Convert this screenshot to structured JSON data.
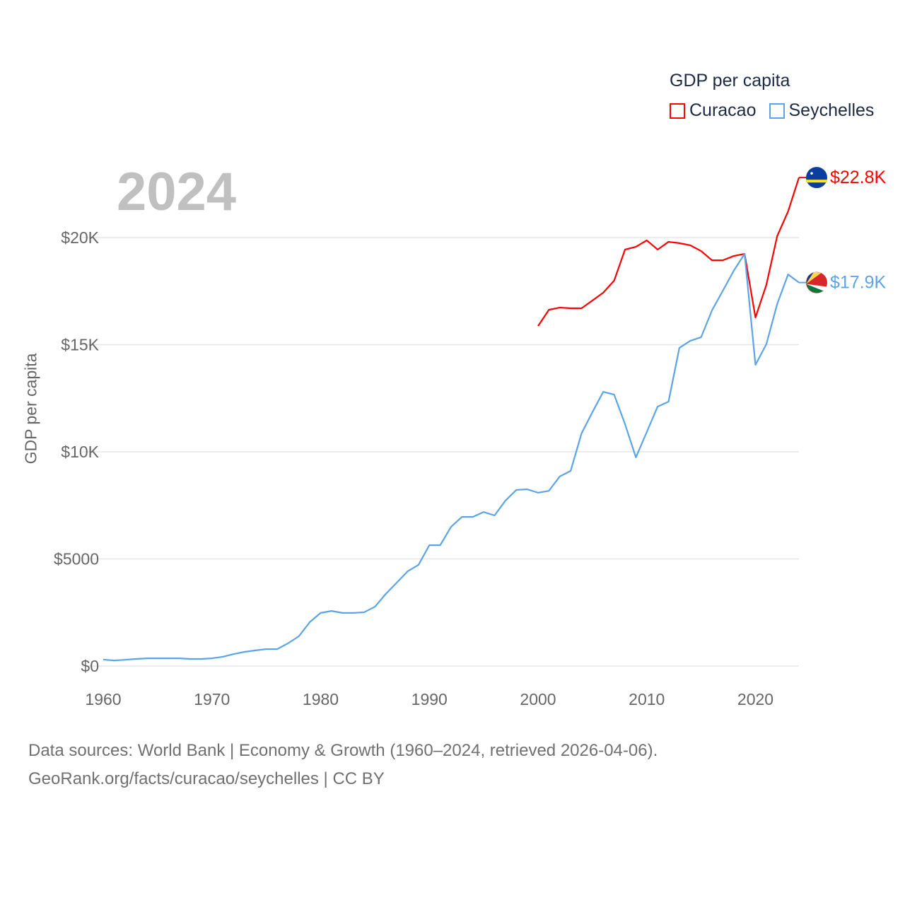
{
  "chart_data": {
    "type": "line",
    "year_label": "2024",
    "ylabel": "GDP per capita",
    "legend_title": "GDP per capita",
    "legend_placement": "top-right",
    "xlim": [
      1960,
      2024
    ],
    "ylim": [
      0,
      22800
    ],
    "x_ticks": [
      1960,
      1970,
      1980,
      1990,
      2000,
      2010,
      2020
    ],
    "x_tick_labels": [
      "1960",
      "1970",
      "1980",
      "1990",
      "2000",
      "2010",
      "2020"
    ],
    "y_ticks": [
      0,
      5000,
      10000,
      15000,
      20000
    ],
    "y_tick_labels": [
      "$0",
      "$5000",
      "$10K",
      "$15K",
      "$20K"
    ],
    "grid": true,
    "series": [
      {
        "name": "Curacao",
        "color": "#ff0000",
        "end_label": "$22.8K",
        "flag_icon": "curacao-flag",
        "x": [
          2000,
          2001,
          2002,
          2003,
          2004,
          2005,
          2006,
          2007,
          2008,
          2009,
          2010,
          2011,
          2012,
          2013,
          2014,
          2015,
          2016,
          2017,
          2018,
          2019,
          2020,
          2021,
          2022,
          2023,
          2024
        ],
        "values": [
          15870,
          16630,
          16730,
          16700,
          16700,
          17060,
          17430,
          17990,
          19440,
          19570,
          19870,
          19440,
          19800,
          19740,
          19640,
          19370,
          18940,
          18940,
          19140,
          19240,
          16270,
          17790,
          20070,
          21220,
          22800
        ]
      },
      {
        "name": "Seychelles",
        "color": "#5ba4ea",
        "end_label": "$17.9K",
        "flag_icon": "seychelles-flag",
        "x": [
          1960,
          1961,
          1962,
          1963,
          1964,
          1965,
          1966,
          1967,
          1968,
          1969,
          1970,
          1971,
          1972,
          1973,
          1974,
          1975,
          1976,
          1977,
          1978,
          1979,
          1980,
          1981,
          1982,
          1983,
          1984,
          1985,
          1986,
          1987,
          1988,
          1989,
          1990,
          1991,
          1992,
          1993,
          1994,
          1995,
          1996,
          1997,
          1998,
          1999,
          2000,
          2001,
          2002,
          2003,
          2004,
          2005,
          2006,
          2007,
          2008,
          2009,
          2010,
          2011,
          2012,
          2013,
          2014,
          2015,
          2016,
          2017,
          2018,
          2019,
          2020,
          2021,
          2022,
          2023,
          2024
        ],
        "values": [
          300,
          260,
          290,
          330,
          360,
          360,
          360,
          360,
          330,
          330,
          360,
          430,
          560,
          660,
          730,
          790,
          790,
          1060,
          1390,
          2050,
          2480,
          2570,
          2480,
          2480,
          2510,
          2770,
          3370,
          3890,
          4420,
          4720,
          5640,
          5640,
          6500,
          6960,
          6960,
          7190,
          7030,
          7720,
          8220,
          8250,
          8090,
          8180,
          8850,
          9110,
          10860,
          11850,
          12800,
          12670,
          11290,
          9740,
          10920,
          12110,
          12340,
          14850,
          15180,
          15350,
          16600,
          17520,
          18450,
          19240,
          14060,
          15020,
          16900,
          18280,
          17900
        ]
      }
    ]
  },
  "footer": {
    "line1": "Data sources: World Bank | Economy & Growth (1960–2024, retrieved 2026-04-06).",
    "line2": "GeoRank.org/facts/curacao/seychelles | CC BY"
  }
}
